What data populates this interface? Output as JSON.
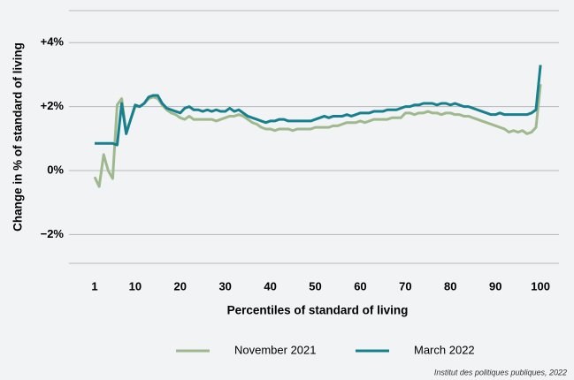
{
  "chart_data": {
    "type": "line",
    "x_label": "Percentiles of standard of living",
    "y_label": "Change in % of standard of living",
    "source": "Institut des politiques publiques, 2022",
    "x": [
      1,
      2,
      3,
      4,
      5,
      6,
      7,
      8,
      9,
      10,
      11,
      12,
      13,
      14,
      15,
      16,
      17,
      18,
      19,
      20,
      21,
      22,
      23,
      24,
      25,
      26,
      27,
      28,
      29,
      30,
      31,
      32,
      33,
      34,
      35,
      36,
      37,
      38,
      39,
      40,
      41,
      42,
      43,
      44,
      45,
      46,
      47,
      48,
      49,
      50,
      51,
      52,
      53,
      54,
      55,
      56,
      57,
      58,
      59,
      60,
      61,
      62,
      63,
      64,
      65,
      66,
      67,
      68,
      69,
      70,
      71,
      72,
      73,
      74,
      75,
      76,
      77,
      78,
      79,
      80,
      81,
      82,
      83,
      84,
      85,
      86,
      87,
      88,
      89,
      90,
      91,
      92,
      93,
      94,
      95,
      96,
      97,
      98,
      99,
      100
    ],
    "xlim": [
      -4.7,
      104.1
    ],
    "xticks": [
      1,
      10,
      20,
      30,
      40,
      50,
      60,
      70,
      80,
      90,
      100
    ],
    "ylim": [
      -2.9,
      5
    ],
    "yticks": [
      {
        "value": -2,
        "label": "−2%"
      },
      {
        "value": 0,
        "label": "0%"
      },
      {
        "value": 2,
        "label": "+2%"
      },
      {
        "value": 4,
        "label": "+4%"
      }
    ],
    "grid": true,
    "legend": "bottom",
    "series": [
      {
        "name": "November 2021",
        "color": "#9fb98e",
        "values": [
          -0.2,
          -0.5,
          0.5,
          0.0,
          -0.25,
          2.05,
          2.25,
          1.2,
          1.6,
          2.0,
          2.0,
          2.1,
          2.25,
          2.3,
          2.25,
          2.05,
          1.9,
          1.8,
          1.75,
          1.65,
          1.6,
          1.7,
          1.6,
          1.6,
          1.6,
          1.6,
          1.6,
          1.55,
          1.6,
          1.65,
          1.7,
          1.7,
          1.75,
          1.7,
          1.6,
          1.5,
          1.45,
          1.35,
          1.3,
          1.3,
          1.25,
          1.3,
          1.3,
          1.3,
          1.25,
          1.3,
          1.3,
          1.3,
          1.3,
          1.35,
          1.35,
          1.35,
          1.35,
          1.4,
          1.4,
          1.45,
          1.5,
          1.5,
          1.5,
          1.55,
          1.5,
          1.55,
          1.6,
          1.6,
          1.6,
          1.6,
          1.65,
          1.65,
          1.65,
          1.8,
          1.8,
          1.75,
          1.8,
          1.8,
          1.85,
          1.8,
          1.8,
          1.75,
          1.8,
          1.8,
          1.75,
          1.75,
          1.7,
          1.7,
          1.65,
          1.6,
          1.55,
          1.5,
          1.45,
          1.4,
          1.35,
          1.3,
          1.2,
          1.25,
          1.2,
          1.25,
          1.15,
          1.2,
          1.35,
          2.7
        ]
      },
      {
        "name": "March 2022",
        "color": "#16808f",
        "values": [
          0.85,
          0.85,
          0.85,
          0.85,
          0.85,
          0.8,
          2.1,
          1.15,
          1.6,
          2.05,
          2.0,
          2.1,
          2.3,
          2.35,
          2.35,
          2.1,
          1.95,
          1.9,
          1.85,
          1.8,
          1.95,
          2.0,
          1.9,
          1.9,
          1.85,
          1.9,
          1.85,
          1.9,
          1.85,
          1.85,
          1.95,
          1.85,
          1.9,
          1.8,
          1.7,
          1.65,
          1.6,
          1.55,
          1.5,
          1.55,
          1.55,
          1.6,
          1.6,
          1.55,
          1.55,
          1.55,
          1.55,
          1.55,
          1.55,
          1.6,
          1.65,
          1.7,
          1.65,
          1.7,
          1.7,
          1.7,
          1.75,
          1.7,
          1.75,
          1.8,
          1.8,
          1.8,
          1.85,
          1.85,
          1.85,
          1.9,
          1.9,
          1.9,
          1.95,
          2.0,
          2.0,
          2.05,
          2.05,
          2.1,
          2.1,
          2.1,
          2.05,
          2.1,
          2.1,
          2.05,
          2.1,
          2.05,
          2.0,
          2.0,
          1.95,
          1.9,
          1.85,
          1.8,
          1.75,
          1.75,
          1.8,
          1.75,
          1.75,
          1.75,
          1.75,
          1.75,
          1.75,
          1.8,
          1.9,
          3.3
        ]
      }
    ]
  }
}
